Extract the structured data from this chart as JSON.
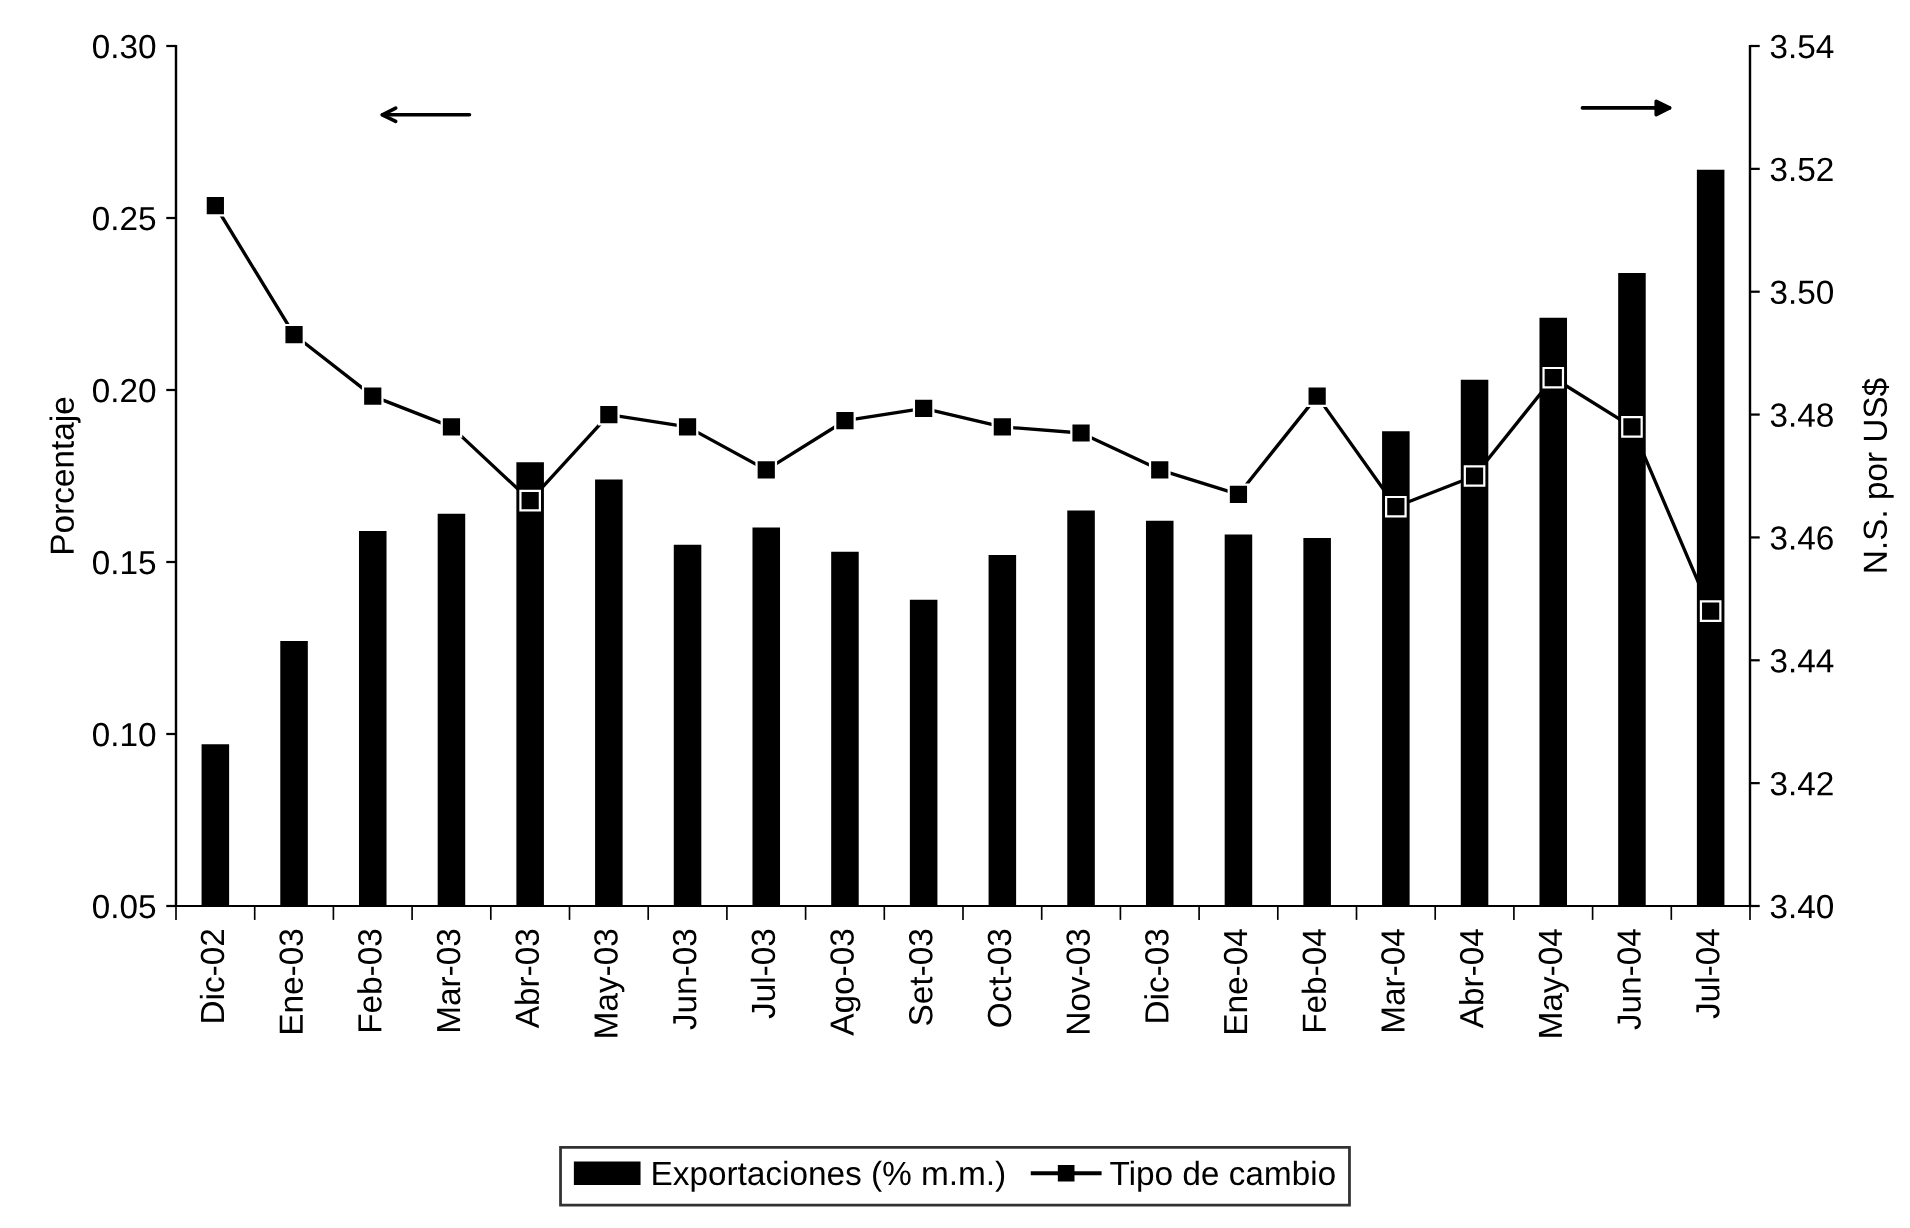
{
  "chart_data": {
    "type": "bar",
    "ylabel": "Porcentaje",
    "y2label": "N.S. por US$",
    "categories": [
      "Dic-02",
      "Ene-03",
      "Feb-03",
      "Mar-03",
      "Abr-03",
      "May-03",
      "Jun-03",
      "Jul-03",
      "Ago-03",
      "Set-03",
      "Oct-03",
      "Nov-03",
      "Dic-03",
      "Ene-04",
      "Feb-04",
      "Mar-04",
      "Abr-04",
      "May-04",
      "Jun-04",
      "Jul-04"
    ],
    "series": [
      {
        "name": "Exportaciones (% m.m.)",
        "color": "#000000",
        "values": [
          0.097,
          0.127,
          0.159,
          0.164,
          0.179,
          0.174,
          0.155,
          0.16,
          0.153,
          0.139,
          0.152,
          0.165,
          0.162,
          0.158,
          0.157,
          0.188,
          0.203,
          0.221,
          0.234,
          0.264
        ]
      },
      {
        "name": "Tipo de cambio",
        "type": "line",
        "axis": "y2",
        "color": "#000000",
        "marker": "square",
        "line_style": "solid",
        "values": [
          3.514,
          3.493,
          3.483,
          3.478,
          3.466,
          3.48,
          3.478,
          3.471,
          3.479,
          3.481,
          3.478,
          3.477,
          3.471,
          3.467,
          3.483,
          3.465,
          3.47,
          3.486,
          3.478,
          3.448
        ]
      }
    ],
    "ylim": [
      0.05,
      0.3
    ],
    "yticks": [
      {
        "value": 0.05,
        "label": "0.05"
      },
      {
        "value": 0.1,
        "label": "0.10"
      },
      {
        "value": 0.15,
        "label": "0.15"
      },
      {
        "value": 0.2,
        "label": "0.20"
      },
      {
        "value": 0.25,
        "label": "0.25"
      },
      {
        "value": 0.3,
        "label": "0.30"
      }
    ],
    "y2lim": [
      3.4,
      3.54
    ],
    "y2ticks": [
      {
        "value": 3.4,
        "label": "3.40"
      },
      {
        "value": 3.42,
        "label": "3.42"
      },
      {
        "value": 3.44,
        "label": "3.44"
      },
      {
        "value": 3.46,
        "label": "3.46"
      },
      {
        "value": 3.48,
        "label": "3.48"
      },
      {
        "value": 3.5,
        "label": "3.50"
      },
      {
        "value": 3.52,
        "label": "3.52"
      },
      {
        "value": 3.54,
        "label": "3.54"
      }
    ],
    "legend": "bottom",
    "grid": false
  }
}
